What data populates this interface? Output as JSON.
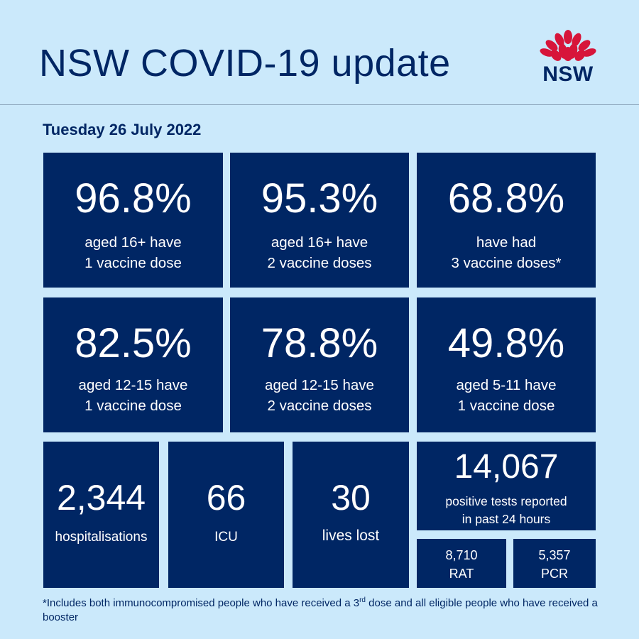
{
  "header": {
    "title": "NSW COVID-19 update",
    "logo_text": "NSW"
  },
  "date": "Tuesday 26 July 2022",
  "vaccination": [
    {
      "value": "96.8%",
      "line1": "aged 16+ have",
      "line2": "1 vaccine dose"
    },
    {
      "value": "95.3%",
      "line1": "aged 16+ have",
      "line2": "2 vaccine doses"
    },
    {
      "value": "68.8%",
      "line1": "have had",
      "line2": "3 vaccine doses*"
    },
    {
      "value": "82.5%",
      "line1": "aged 12-15 have",
      "line2": "1 vaccine dose"
    },
    {
      "value": "78.8%",
      "line1": "aged 12-15 have",
      "line2": "2 vaccine doses"
    },
    {
      "value": "49.8%",
      "line1": "aged 5-11 have",
      "line2": "1 vaccine dose"
    }
  ],
  "stats": {
    "hospitalisations": {
      "value": "2,344",
      "label": "hospitalisations"
    },
    "icu": {
      "value": "66",
      "label": "ICU"
    },
    "deaths": {
      "value": "30",
      "label": "lives lost"
    },
    "positive": {
      "value": "14,067",
      "line1": "positive tests reported",
      "line2": "in past 24 hours"
    },
    "rat": {
      "value": "8,710",
      "label": "RAT"
    },
    "pcr": {
      "value": "5,357",
      "label": "PCR"
    }
  },
  "footnote": {
    "before": "*Includes both immunocompromised people who have received a 3",
    "sup": "rd",
    "after": " dose and all eligible people who have received a booster"
  },
  "colors": {
    "background": "#cbe9fb",
    "tile": "#002664",
    "waratah_red": "#d7153a"
  }
}
